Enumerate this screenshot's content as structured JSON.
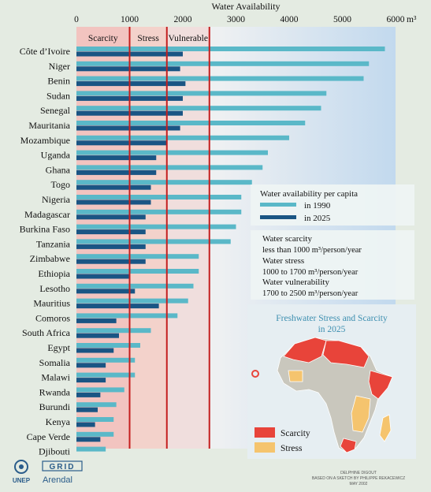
{
  "chart_data": {
    "type": "bar",
    "title": "Water Availability",
    "unit": "m³",
    "xlim": [
      0,
      6000
    ],
    "ticks": [
      {
        "value": 0,
        "label": "0"
      },
      {
        "value": 1000,
        "label": "1000"
      },
      {
        "value": 2000,
        "label": "2000"
      },
      {
        "value": 3000,
        "label": "3000"
      },
      {
        "value": 4000,
        "label": "4000"
      },
      {
        "value": 5000,
        "label": "5000"
      },
      {
        "value": 6000,
        "label": "6000"
      }
    ],
    "thresholds": [
      1000,
      1700,
      2500
    ],
    "zones": [
      {
        "label": "Scarcity",
        "from": 0,
        "to": 1000,
        "color": "#f2c4c0"
      },
      {
        "label": "Stress",
        "from": 1000,
        "to": 1700,
        "color": "#f3d2cb"
      },
      {
        "label": "Vulnerable",
        "from": 1700,
        "to": 2500,
        "color": "#f0dedd"
      }
    ],
    "categories": [
      "Côte d’Ivoire",
      "Niger",
      "Benin",
      "Sudan",
      "Senegal",
      "Mauritania",
      "Mozambique",
      "Uganda",
      "Ghana",
      "Togo",
      "Nigeria",
      "Madagascar",
      "Burkina Faso",
      "Tanzania",
      "Zimbabwe",
      "Ethiopia",
      "Lesotho",
      "Mauritius",
      "Comoros",
      "South Africa",
      "Egypt",
      "Somalia",
      "Malawi",
      "Rwanda",
      "Burundi",
      "Kenya",
      "Cape Verde",
      "Djibouti"
    ],
    "series": [
      {
        "name": "in 1990",
        "color": "#5ab8c8",
        "values": [
          5800,
          5500,
          5400,
          4700,
          4600,
          4300,
          4000,
          3600,
          3500,
          3300,
          3100,
          3100,
          3000,
          2900,
          2300,
          2300,
          2200,
          2100,
          1900,
          1400,
          1200,
          1100,
          1100,
          900,
          750,
          700,
          700,
          550
        ]
      },
      {
        "name": "in 2025",
        "color": "#1a5584",
        "values": [
          2000,
          1950,
          2050,
          2000,
          2000,
          1950,
          1700,
          1500,
          1500,
          1400,
          1400,
          1300,
          1300,
          1300,
          1300,
          1000,
          1100,
          1550,
          750,
          800,
          700,
          550,
          550,
          450,
          400,
          350,
          450,
          0
        ]
      }
    ]
  },
  "legend": {
    "title": "Water availability per capita",
    "items": [
      "in 1990",
      "in 2025"
    ]
  },
  "definitions": {
    "lines": [
      "Water scarcity",
      "less than 1000 m³/person/year",
      "Water stress",
      "1000 to 1700 m³/person/year",
      "Water vulnerability",
      "1700 to 2500 m³/person/year"
    ]
  },
  "map": {
    "title_line1": "Freshwater Stress and Scarcity",
    "title_line2": "in 2025",
    "legend": [
      {
        "label": "Scarcity",
        "color": "#e8443a"
      },
      {
        "label": "Stress",
        "color": "#f5c46e"
      }
    ]
  },
  "logos": {
    "unep": "UNEP",
    "grid": "GRID",
    "arendal": "Arendal"
  },
  "credits": [
    "DELPHINE DIGOUT",
    "BASED ON A SKETCH BY PHILIPPE REKACEWICZ",
    "MAY 2002"
  ]
}
